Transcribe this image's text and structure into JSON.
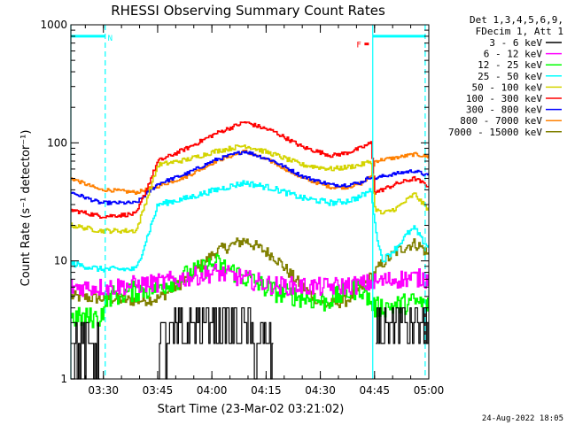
{
  "chart_data": {
    "type": "line",
    "title": "RHESSI Observing Summary Count Rates",
    "xlabel": "Start Time (23-Mar-02 03:21:02)",
    "ylabel": "Count Rate (s⁻¹ detector⁻¹)",
    "x_axis": {
      "ticks": [
        "03:30",
        "03:45",
        "04:00",
        "04:15",
        "04:30",
        "04:45",
        "05:00"
      ],
      "tick_minutes": [
        9,
        24,
        39,
        54,
        69,
        84,
        99
      ],
      "range_minutes": [
        0,
        99
      ],
      "unit": "minutes after 03:21:02"
    },
    "y_axis": {
      "scale": "log",
      "ylim": [
        1,
        1000
      ],
      "ticks": [
        "1",
        "10",
        "100",
        "1000"
      ]
    },
    "legend": {
      "position": "top-right",
      "header": [
        "Det 1,3,4,5,6,9,",
        "FDecim 1, Att 1"
      ]
    },
    "series": [
      {
        "name": "3 - 6 keV",
        "color": "#000000",
        "x": [
          0,
          8,
          9,
          10,
          24,
          30,
          40,
          50,
          56,
          57,
          84,
          88,
          94,
          99
        ],
        "y": [
          1.8,
          1.8,
          null,
          null,
          1.8,
          2.2,
          3.6,
          2.2,
          1.6,
          null,
          2.3,
          3.0,
          3.3,
          3.0
        ]
      },
      {
        "name": "6 - 12 keV",
        "color": "#ff00ff",
        "x": [
          0,
          8,
          10,
          24,
          40,
          56,
          70,
          80,
          84,
          90,
          95,
          99
        ],
        "y": [
          6.0,
          6.0,
          6.0,
          6.5,
          8.0,
          6.2,
          6.0,
          6.3,
          6.6,
          7.0,
          7.2,
          7.0
        ]
      },
      {
        "name": "12 - 25 keV",
        "color": "#00ff00",
        "x": [
          0,
          8,
          10,
          24,
          40,
          56,
          70,
          80,
          84,
          90,
          95,
          99
        ],
        "y": [
          3.3,
          3.3,
          5.0,
          6.0,
          9.5,
          5.5,
          4.5,
          6.0,
          4.0,
          4.2,
          4.5,
          4.2
        ]
      },
      {
        "name": "25 - 50 keV",
        "color": "#00ffff",
        "x": [
          0,
          8,
          10,
          18,
          24,
          32,
          40,
          48,
          56,
          64,
          72,
          76,
          80,
          83,
          84,
          86,
          90,
          93,
          95,
          97,
          99
        ],
        "y": [
          9.5,
          8.5,
          8.5,
          8.5,
          30,
          34,
          40,
          46,
          41,
          34,
          31,
          32,
          35,
          40,
          20,
          10,
          13,
          17,
          19,
          15,
          13
        ]
      },
      {
        "name": "50 - 100 keV",
        "color": "#d4d400",
        "x": [
          0,
          8,
          10,
          18,
          24,
          32,
          40,
          48,
          56,
          64,
          72,
          76,
          80,
          83,
          84,
          86,
          90,
          93,
          95,
          97,
          99
        ],
        "y": [
          20,
          18,
          18,
          18,
          65,
          72,
          85,
          95,
          80,
          65,
          60,
          62,
          65,
          70,
          28,
          25,
          28,
          33,
          37,
          31,
          27
        ]
      },
      {
        "name": "100 - 300 keV",
        "color": "#ff0000",
        "x": [
          0,
          8,
          10,
          18,
          24,
          32,
          40,
          48,
          56,
          64,
          72,
          76,
          80,
          83,
          84,
          86,
          90,
          93,
          95,
          97,
          99
        ],
        "y": [
          27,
          24,
          24,
          25,
          70,
          90,
          120,
          150,
          125,
          92,
          78,
          82,
          90,
          100,
          38,
          40,
          45,
          48,
          50,
          46,
          43
        ]
      },
      {
        "name": "300 - 800 keV",
        "color": "#0000ff",
        "x": [
          0,
          8,
          10,
          18,
          24,
          32,
          40,
          48,
          56,
          64,
          72,
          76,
          80,
          83,
          84,
          86,
          90,
          93,
          95,
          97,
          99
        ],
        "y": [
          38,
          31,
          31,
          31,
          45,
          55,
          72,
          85,
          70,
          52,
          44,
          44,
          46,
          52,
          50,
          52,
          55,
          57,
          58,
          55,
          52
        ]
      },
      {
        "name": "800 - 7000 keV",
        "color": "#ff8000",
        "x": [
          0,
          8,
          10,
          18,
          24,
          32,
          40,
          48,
          56,
          64,
          72,
          76,
          80,
          83,
          84,
          86,
          90,
          93,
          95,
          97,
          99
        ],
        "y": [
          50,
          40,
          40,
          38,
          43,
          52,
          70,
          85,
          68,
          50,
          42,
          42,
          45,
          52,
          70,
          72,
          75,
          78,
          80,
          78,
          76
        ]
      },
      {
        "name": "7000 - 15000 keV",
        "color": "#808000",
        "x": [
          0,
          8,
          10,
          18,
          24,
          32,
          40,
          48,
          56,
          64,
          70,
          76,
          80,
          84,
          86,
          90,
          93,
          95,
          97,
          99
        ],
        "y": [
          5.0,
          4.8,
          4.8,
          4.6,
          4.8,
          7.0,
          12,
          15,
          11,
          6.0,
          4.2,
          4.6,
          5.8,
          8.0,
          9.5,
          12,
          13.5,
          14,
          13,
          11
        ]
      }
    ],
    "attenuator_lines": {
      "color": "#00ffff",
      "solid_minutes": [
        0,
        83.5
      ],
      "dashed_minutes": [
        9.5,
        98
      ],
      "bars": [
        [
          0,
          9.5
        ],
        [
          83.5,
          98
        ]
      ]
    },
    "annotations": [
      {
        "text": "N",
        "color": "#00ffff",
        "x_minutes": 10.2,
        "y": 800
      },
      {
        "text": "F",
        "color": "#ff0000",
        "x_minutes": 79,
        "y": 700
      }
    ],
    "grid": false
  },
  "footer": {
    "timestamp": "24-Aug-2022 18:05"
  }
}
